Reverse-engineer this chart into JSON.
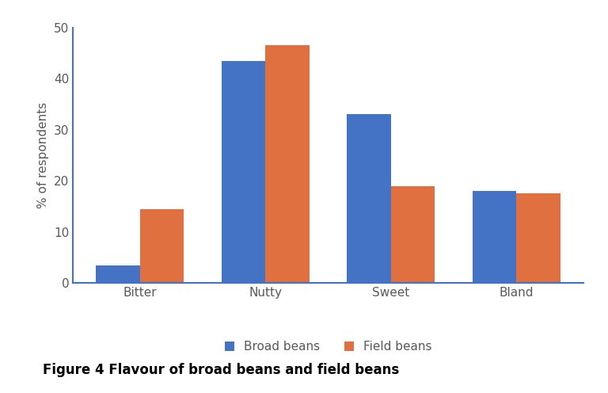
{
  "categories": [
    "Bitter",
    "Nutty",
    "Sweet",
    "Bland"
  ],
  "broad_beans": [
    3.5,
    43.5,
    33.0,
    18.0
  ],
  "field_beans": [
    14.5,
    46.5,
    19.0,
    17.5
  ],
  "broad_color": "#4472C4",
  "field_color": "#E07040",
  "ylabel": "% of respondents",
  "ylim": [
    0,
    50
  ],
  "yticks": [
    0,
    10,
    20,
    30,
    40,
    50
  ],
  "legend_labels": [
    "Broad beans",
    "Field beans"
  ],
  "caption": "Figure 4 Flavour of broad beans and field beans",
  "bar_width": 0.35,
  "background_color": "#ffffff",
  "spine_color": "#4472C4",
  "tick_label_color": "#595959",
  "ylabel_color": "#595959"
}
